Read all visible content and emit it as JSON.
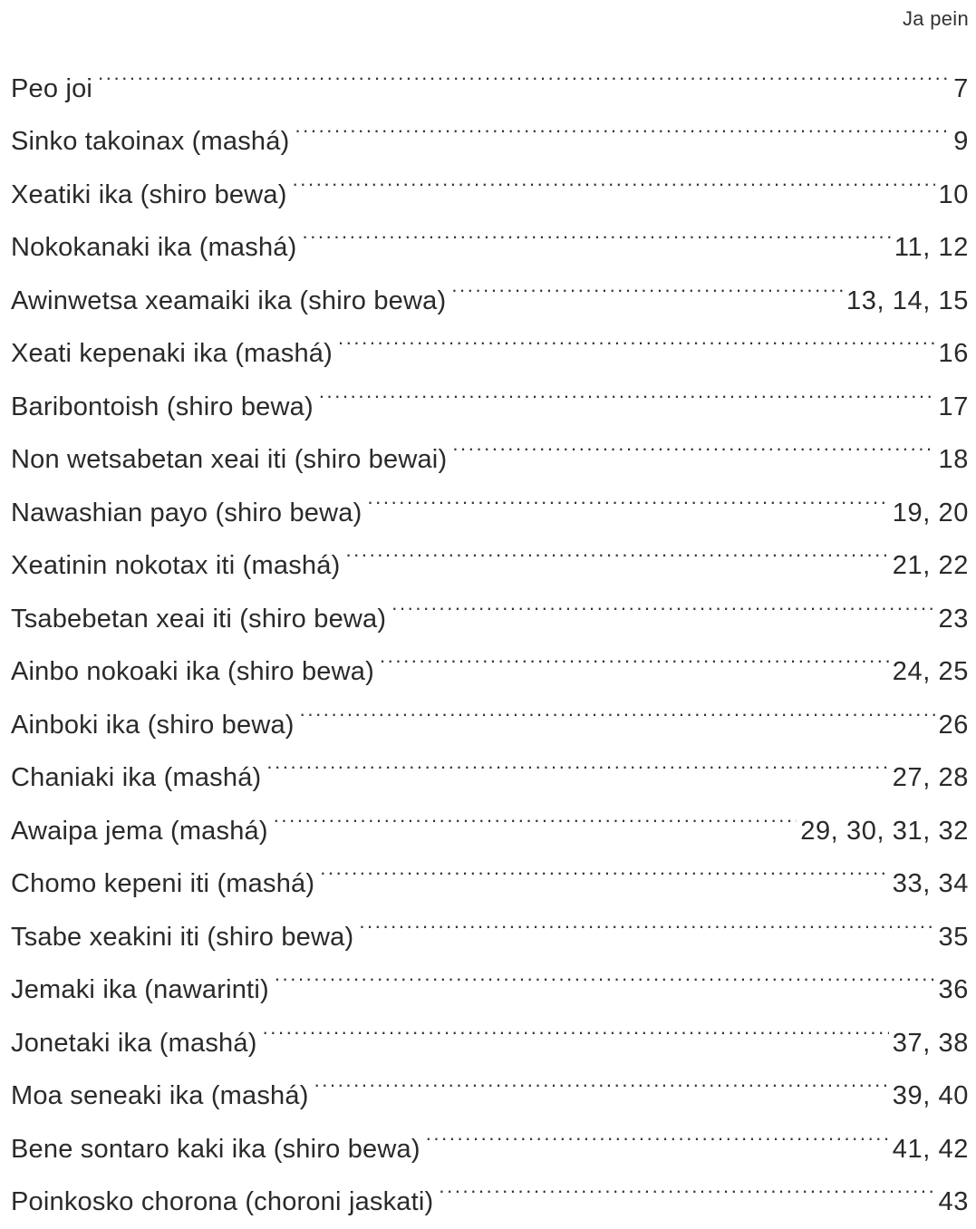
{
  "header": {
    "label": "Ja pein"
  },
  "toc": [
    {
      "title": "Peo joi",
      "pages": "7"
    },
    {
      "title": "Sinko takoinax (mashá)",
      "pages": "9"
    },
    {
      "title": "Xeatiki ika (shiro bewa)",
      "pages": "10"
    },
    {
      "title": "Nokokanaki ika (mashá)",
      "pages": "11, 12"
    },
    {
      "title": "Awinwetsa xeamaiki ika (shiro bewa)",
      "pages": "13, 14, 15"
    },
    {
      "title": "Xeati kepenaki ika (mashá)",
      "pages": "16"
    },
    {
      "title": "Baribontoish (shiro bewa)",
      "pages": "17"
    },
    {
      "title": "Non wetsabetan xeai iti (shiro bewai)",
      "pages": "18"
    },
    {
      "title": "Nawashian payo (shiro bewa)",
      "pages": "19, 20"
    },
    {
      "title": "Xeatinin nokotax iti (mashá)",
      "pages": "21, 22"
    },
    {
      "title": "Tsabebetan xeai iti (shiro bewa)",
      "pages": "23"
    },
    {
      "title": "Ainbo nokoaki ika (shiro bewa)",
      "pages": "24, 25"
    },
    {
      "title": "Ainboki ika (shiro bewa)",
      "pages": "26"
    },
    {
      "title": "Chaniaki ika (mashá)",
      "pages": "27, 28"
    },
    {
      "title": "Awaipa jema (mashá)",
      "pages": "29, 30, 31, 32"
    },
    {
      "title": "Chomo kepeni iti (mashá)",
      "pages": "33, 34"
    },
    {
      "title": "Tsabe xeakini iti (shiro bewa)",
      "pages": "35"
    },
    {
      "title": "Jemaki ika (nawarinti)",
      "pages": "36"
    },
    {
      "title": "Jonetaki ika (mashá)",
      "pages": "37, 38"
    },
    {
      "title": "Moa seneaki ika (mashá)",
      "pages": "39, 40"
    },
    {
      "title": "Bene sontaro kaki ika (shiro bewa)",
      "pages": "41, 42"
    },
    {
      "title": "Poinkosko chorona (choroni jaskati)",
      "pages": "43"
    }
  ]
}
